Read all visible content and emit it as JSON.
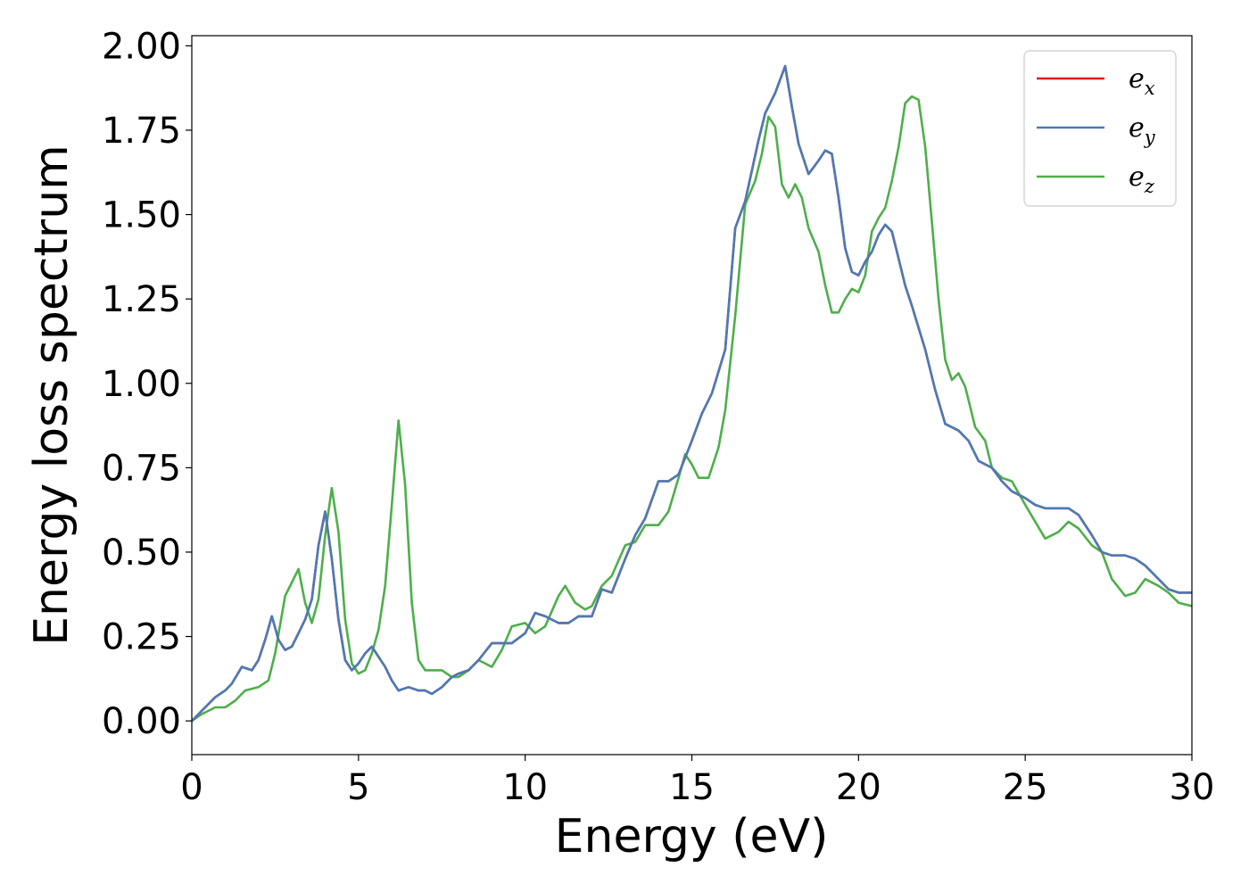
{
  "chart_data": {
    "type": "line",
    "title": "",
    "xlabel": "Energy (eV)",
    "ylabel": "Energy loss spectrum",
    "xlim": [
      0,
      30
    ],
    "ylim": [
      -0.1,
      2.03
    ],
    "x_ticks": [
      "0",
      "5",
      "10",
      "15",
      "20",
      "25",
      "30"
    ],
    "y_ticks": [
      "0.00",
      "0.25",
      "0.50",
      "0.75",
      "1.00",
      "1.25",
      "1.50",
      "1.75",
      "2.00"
    ],
    "grid": false,
    "legend_position": "top-right",
    "series": [
      {
        "name": "e",
        "subscript": "x",
        "color": "#e41a1c",
        "x": [
          0,
          0.3,
          0.7,
          1.0,
          1.2,
          1.5,
          1.8,
          2.0,
          2.2,
          2.4,
          2.6,
          2.8,
          3.0,
          3.2,
          3.4,
          3.6,
          3.8,
          4.0,
          4.2,
          4.4,
          4.6,
          4.8,
          5.0,
          5.2,
          5.4,
          5.6,
          5.8,
          6.0,
          6.2,
          6.5,
          6.8,
          7.0,
          7.2,
          7.5,
          7.8,
          8.0,
          8.3,
          8.6,
          9.0,
          9.3,
          9.6,
          10.0,
          10.3,
          10.6,
          11.0,
          11.3,
          11.6,
          12.0,
          12.3,
          12.6,
          13.0,
          13.3,
          13.6,
          14.0,
          14.3,
          14.6,
          15.0,
          15.3,
          15.6,
          16.0,
          16.3,
          16.6,
          17.0,
          17.2,
          17.5,
          17.8,
          18.0,
          18.2,
          18.5,
          18.8,
          19.0,
          19.2,
          19.4,
          19.6,
          19.8,
          20.0,
          20.2,
          20.4,
          20.6,
          20.8,
          21.0,
          21.2,
          21.4,
          21.6,
          22.0,
          22.3,
          22.6,
          23.0,
          23.3,
          23.6,
          24.0,
          24.3,
          24.6,
          25.0,
          25.3,
          25.6,
          26.0,
          26.3,
          26.6,
          27.0,
          27.3,
          27.6,
          28.0,
          28.3,
          28.6,
          29.0,
          29.3,
          29.6,
          30.0
        ],
        "y": [
          0.0,
          0.03,
          0.07,
          0.09,
          0.11,
          0.16,
          0.15,
          0.18,
          0.24,
          0.31,
          0.24,
          0.21,
          0.22,
          0.26,
          0.3,
          0.36,
          0.52,
          0.62,
          0.48,
          0.3,
          0.18,
          0.15,
          0.17,
          0.2,
          0.22,
          0.19,
          0.16,
          0.12,
          0.09,
          0.1,
          0.09,
          0.09,
          0.08,
          0.1,
          0.13,
          0.14,
          0.15,
          0.18,
          0.23,
          0.23,
          0.23,
          0.26,
          0.32,
          0.31,
          0.29,
          0.29,
          0.31,
          0.31,
          0.39,
          0.38,
          0.48,
          0.55,
          0.6,
          0.71,
          0.71,
          0.73,
          0.83,
          0.91,
          0.97,
          1.1,
          1.46,
          1.54,
          1.72,
          1.8,
          1.86,
          1.94,
          1.82,
          1.71,
          1.62,
          1.66,
          1.69,
          1.68,
          1.55,
          1.4,
          1.33,
          1.32,
          1.36,
          1.39,
          1.44,
          1.47,
          1.45,
          1.37,
          1.29,
          1.23,
          1.1,
          0.98,
          0.88,
          0.86,
          0.83,
          0.77,
          0.75,
          0.71,
          0.68,
          0.66,
          0.64,
          0.63,
          0.63,
          0.63,
          0.61,
          0.55,
          0.5,
          0.49,
          0.49,
          0.48,
          0.46,
          0.42,
          0.39,
          0.38,
          0.38
        ]
      },
      {
        "name": "e",
        "subscript": "y",
        "color": "#4a7bb7",
        "x": [
          0,
          0.3,
          0.7,
          1.0,
          1.2,
          1.5,
          1.8,
          2.0,
          2.2,
          2.4,
          2.6,
          2.8,
          3.0,
          3.2,
          3.4,
          3.6,
          3.8,
          4.0,
          4.2,
          4.4,
          4.6,
          4.8,
          5.0,
          5.2,
          5.4,
          5.6,
          5.8,
          6.0,
          6.2,
          6.5,
          6.8,
          7.0,
          7.2,
          7.5,
          7.8,
          8.0,
          8.3,
          8.6,
          9.0,
          9.3,
          9.6,
          10.0,
          10.3,
          10.6,
          11.0,
          11.3,
          11.6,
          12.0,
          12.3,
          12.6,
          13.0,
          13.3,
          13.6,
          14.0,
          14.3,
          14.6,
          15.0,
          15.3,
          15.6,
          16.0,
          16.3,
          16.6,
          17.0,
          17.2,
          17.5,
          17.8,
          18.0,
          18.2,
          18.5,
          18.8,
          19.0,
          19.2,
          19.4,
          19.6,
          19.8,
          20.0,
          20.2,
          20.4,
          20.6,
          20.8,
          21.0,
          21.2,
          21.4,
          21.6,
          22.0,
          22.3,
          22.6,
          23.0,
          23.3,
          23.6,
          24.0,
          24.3,
          24.6,
          25.0,
          25.3,
          25.6,
          26.0,
          26.3,
          26.6,
          27.0,
          27.3,
          27.6,
          28.0,
          28.3,
          28.6,
          29.0,
          29.3,
          29.6,
          30.0
        ],
        "y": [
          0.0,
          0.03,
          0.07,
          0.09,
          0.11,
          0.16,
          0.15,
          0.18,
          0.24,
          0.31,
          0.24,
          0.21,
          0.22,
          0.26,
          0.3,
          0.36,
          0.52,
          0.62,
          0.48,
          0.3,
          0.18,
          0.15,
          0.17,
          0.2,
          0.22,
          0.19,
          0.16,
          0.12,
          0.09,
          0.1,
          0.09,
          0.09,
          0.08,
          0.1,
          0.13,
          0.14,
          0.15,
          0.18,
          0.23,
          0.23,
          0.23,
          0.26,
          0.32,
          0.31,
          0.29,
          0.29,
          0.31,
          0.31,
          0.39,
          0.38,
          0.48,
          0.55,
          0.6,
          0.71,
          0.71,
          0.73,
          0.83,
          0.91,
          0.97,
          1.1,
          1.46,
          1.54,
          1.72,
          1.8,
          1.86,
          1.94,
          1.82,
          1.71,
          1.62,
          1.66,
          1.69,
          1.68,
          1.55,
          1.4,
          1.33,
          1.32,
          1.36,
          1.39,
          1.44,
          1.47,
          1.45,
          1.37,
          1.29,
          1.23,
          1.1,
          0.98,
          0.88,
          0.86,
          0.83,
          0.77,
          0.75,
          0.71,
          0.68,
          0.66,
          0.64,
          0.63,
          0.63,
          0.63,
          0.61,
          0.55,
          0.5,
          0.49,
          0.49,
          0.48,
          0.46,
          0.42,
          0.39,
          0.38,
          0.38
        ]
      },
      {
        "name": "e",
        "subscript": "z",
        "color": "#4daf4a",
        "x": [
          0,
          0.3,
          0.7,
          1.0,
          1.3,
          1.6,
          2.0,
          2.3,
          2.5,
          2.8,
          3.0,
          3.2,
          3.4,
          3.6,
          3.8,
          4.0,
          4.2,
          4.4,
          4.6,
          4.8,
          5.0,
          5.2,
          5.4,
          5.6,
          5.8,
          6.0,
          6.2,
          6.4,
          6.6,
          6.8,
          7.0,
          7.2,
          7.5,
          7.8,
          8.0,
          8.3,
          8.6,
          9.0,
          9.3,
          9.6,
          10.0,
          10.3,
          10.6,
          11.0,
          11.2,
          11.5,
          11.8,
          12.0,
          12.3,
          12.6,
          13.0,
          13.3,
          13.6,
          14.0,
          14.3,
          14.6,
          14.8,
          15.0,
          15.2,
          15.5,
          15.8,
          16.0,
          16.3,
          16.6,
          16.9,
          17.1,
          17.3,
          17.5,
          17.7,
          17.9,
          18.1,
          18.3,
          18.5,
          18.8,
          19.0,
          19.2,
          19.4,
          19.6,
          19.8,
          20.0,
          20.2,
          20.4,
          20.6,
          20.8,
          21.0,
          21.2,
          21.4,
          21.6,
          21.8,
          22.0,
          22.2,
          22.4,
          22.6,
          22.8,
          23.0,
          23.2,
          23.5,
          23.8,
          24.0,
          24.3,
          24.6,
          25.0,
          25.3,
          25.6,
          26.0,
          26.3,
          26.6,
          27.0,
          27.3,
          27.6,
          28.0,
          28.3,
          28.6,
          29.0,
          29.3,
          29.6,
          30.0
        ],
        "y": [
          0.0,
          0.02,
          0.04,
          0.04,
          0.06,
          0.09,
          0.1,
          0.12,
          0.2,
          0.37,
          0.41,
          0.45,
          0.35,
          0.29,
          0.36,
          0.55,
          0.69,
          0.56,
          0.3,
          0.17,
          0.14,
          0.15,
          0.2,
          0.27,
          0.4,
          0.64,
          0.89,
          0.7,
          0.35,
          0.18,
          0.15,
          0.15,
          0.15,
          0.13,
          0.13,
          0.15,
          0.18,
          0.16,
          0.21,
          0.28,
          0.29,
          0.26,
          0.28,
          0.37,
          0.4,
          0.35,
          0.33,
          0.34,
          0.4,
          0.43,
          0.52,
          0.53,
          0.58,
          0.58,
          0.62,
          0.72,
          0.79,
          0.76,
          0.72,
          0.72,
          0.81,
          0.92,
          1.2,
          1.53,
          1.6,
          1.68,
          1.79,
          1.76,
          1.59,
          1.55,
          1.59,
          1.55,
          1.46,
          1.39,
          1.29,
          1.21,
          1.21,
          1.25,
          1.28,
          1.27,
          1.32,
          1.45,
          1.49,
          1.52,
          1.6,
          1.7,
          1.83,
          1.85,
          1.84,
          1.7,
          1.48,
          1.25,
          1.07,
          1.01,
          1.03,
          0.99,
          0.87,
          0.83,
          0.75,
          0.72,
          0.71,
          0.64,
          0.59,
          0.54,
          0.56,
          0.59,
          0.57,
          0.52,
          0.5,
          0.42,
          0.37,
          0.38,
          0.42,
          0.4,
          0.38,
          0.35,
          0.34
        ]
      }
    ]
  }
}
